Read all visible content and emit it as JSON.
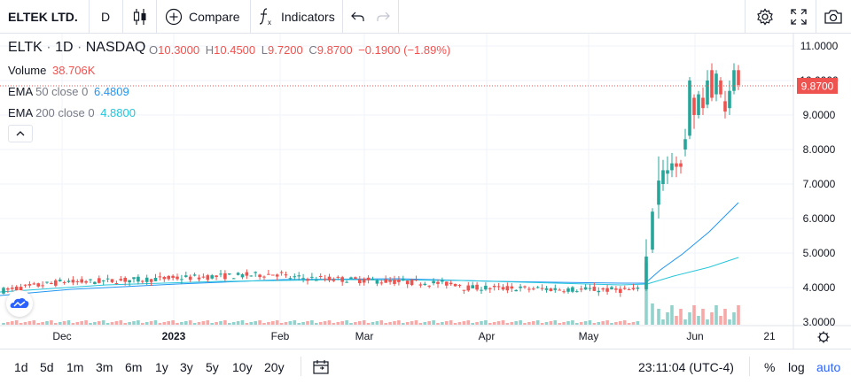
{
  "toolbar": {
    "symbol_name": "ELTEK LTD.",
    "interval": "D",
    "compare_label": "Compare",
    "indicators_label": "Indicators"
  },
  "legend": {
    "ticker": "ELTK",
    "sep1": "·",
    "interval": "1D",
    "sep2": "·",
    "exchange": "NASDAQ",
    "o_label": "O",
    "o_value": "10.3000",
    "h_label": "H",
    "h_value": "10.4500",
    "l_label": "L",
    "l_value": "9.7200",
    "c_label": "C",
    "c_value": "9.8700",
    "change": "−0.1900 (−1.89%)",
    "volume_label": "Volume",
    "volume_value": "38.706K",
    "ema50_label": "EMA",
    "ema50_params": "50 close 0",
    "ema50_value": "6.4809",
    "ema200_label": "EMA",
    "ema200_params": "200 close 0",
    "ema200_value": "4.8800"
  },
  "price_axis": {
    "ticks": [
      "11.0000",
      "10.0000",
      "9.0000",
      "8.0000",
      "7.0000",
      "6.0000",
      "5.0000",
      "4.0000",
      "3.0000"
    ],
    "last_price_label": "9.8700"
  },
  "time_axis": {
    "ticks": [
      "Dec",
      "2023",
      "Feb",
      "Mar",
      "Apr",
      "May",
      "Jun",
      "21"
    ]
  },
  "bottombar": {
    "ranges": [
      "1d",
      "5d",
      "1m",
      "3m",
      "6m",
      "1y",
      "3y",
      "5y",
      "10y",
      "20y"
    ],
    "clock": "23:11:04 (UTC-4)",
    "percent_label": "%",
    "log_label": "log",
    "auto_label": "auto"
  },
  "colors": {
    "up": "#26a69a",
    "down": "#ef5350",
    "ema50": "#2196f3",
    "ema200": "#26c6da",
    "grid": "#f0f3fa",
    "auto_active": "#2962ff"
  },
  "chart_data": {
    "type": "candlestick",
    "ylim": [
      3.0,
      11.0
    ],
    "last_price": 9.87,
    "phase1": {
      "from": "Nov 2022",
      "to": "mid May 2023",
      "range": [
        3.8,
        4.5
      ]
    },
    "breakout": {
      "date": "late May 2023",
      "high": 10.45
    },
    "ema50_end": 6.4809,
    "ema200_end": 4.88
  }
}
